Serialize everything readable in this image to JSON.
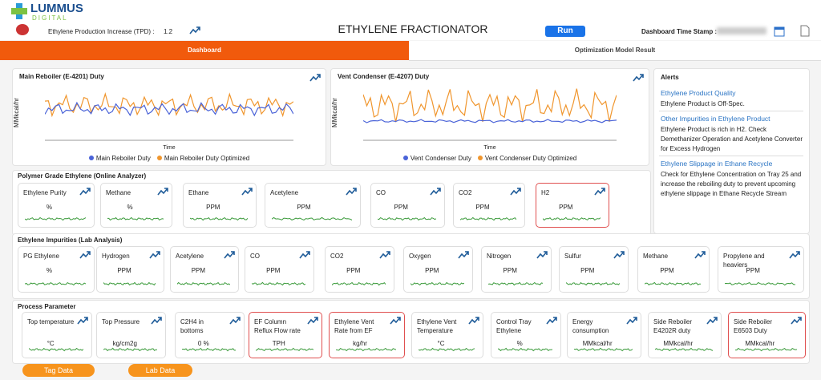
{
  "header": {
    "brand": "LUMMUS",
    "brand_sub": "DIGITAL",
    "production_label": "Ethylene Production Increase (TPD) :",
    "production_value": "1.2",
    "title": "ETHYLENE FRACTIONATOR",
    "run": "Run",
    "timestamp_label": "Dashboard Time Stamp :"
  },
  "tabs": [
    "Dashboard",
    "Optimization Model Result"
  ],
  "charts": [
    {
      "title": "Main Reboiler (E-4201) Duty",
      "y_label": "MMkcal/hr",
      "x_label": "Time",
      "legend": [
        {
          "name": "Main Reboiler Duty",
          "color": "#4a63d8"
        },
        {
          "name": "Main Reboiler Duty Optimized",
          "color": "#f0962e"
        }
      ]
    },
    {
      "title": "Vent Condenser (E-4207) Duty",
      "y_label": "MMkcal/hr",
      "x_label": "Time",
      "legend": [
        {
          "name": "Vent Condenser Duty",
          "color": "#4a63d8"
        },
        {
          "name": "Vent Condenser Duty Optimized",
          "color": "#f0962e"
        }
      ]
    }
  ],
  "alerts": {
    "title": "Alerts",
    "items": [
      {
        "heading": "Ethylene Product Quality",
        "text": "Ethylene Product is Off-Spec."
      },
      {
        "heading": "Other Impurities in Ethylene Product",
        "text": "Ethylene Product is rich in H2. Check Demethanizer Operation and Acetylene Converter for Excess Hydrogen"
      },
      {
        "heading": "Ethylene Slippage in Ethane Recycle",
        "text": "Check for Ethylene Concentration on Tray 25 and increase the reboiling duty to prevent upcoming ethylene slippage in Ethane Recycle Stream"
      }
    ]
  },
  "sections": [
    {
      "title": "Polymer Grade Ethylene (Online Analyzer)",
      "cards": [
        {
          "name": "Ethylene Purity",
          "unit": "%",
          "highlight": false
        },
        {
          "name": "Methane",
          "unit": "%",
          "highlight": false
        },
        {
          "name": "Ethane",
          "unit": "PPM",
          "highlight": false
        },
        {
          "name": "Acetylene",
          "unit": "PPM",
          "highlight": false
        },
        {
          "name": "CO",
          "unit": "PPM",
          "highlight": false
        },
        {
          "name": "CO2",
          "unit": "PPM",
          "highlight": false
        },
        {
          "name": "H2",
          "unit": "PPM",
          "highlight": true
        }
      ]
    },
    {
      "title": "Ethylene Impurities (Lab Analysis)",
      "cards": [
        {
          "name": "PG Ethylene",
          "unit": "%",
          "highlight": false
        },
        {
          "name": "Hydrogen",
          "unit": "PPM",
          "highlight": false
        },
        {
          "name": "Acetylene",
          "unit": "PPM",
          "highlight": false
        },
        {
          "name": "CO",
          "unit": "PPM",
          "highlight": false
        },
        {
          "name": "CO2",
          "unit": "PPM",
          "highlight": false
        },
        {
          "name": "Oxygen",
          "unit": "PPM",
          "highlight": false
        },
        {
          "name": "Nitrogen",
          "unit": "PPM",
          "highlight": false
        },
        {
          "name": "Sulfur",
          "unit": "PPM",
          "highlight": false
        },
        {
          "name": "Methane",
          "unit": "PPM",
          "highlight": false
        },
        {
          "name": "Propylene and heaviers",
          "unit": "PPM",
          "highlight": false
        }
      ]
    },
    {
      "title": "Process Parameter",
      "cards": [
        {
          "name": "Top temperature",
          "unit": "°C",
          "highlight": false
        },
        {
          "name": "Top Pressure",
          "unit": "kg/cm2g",
          "highlight": false
        },
        {
          "name": "C2H4 in bottoms",
          "unit": "0 %",
          "highlight": false
        },
        {
          "name": "EF Column Reflux Flow rate",
          "unit": "TPH",
          "highlight": true
        },
        {
          "name": "Ethylene Vent Rate from EF",
          "unit": "kg/hr",
          "highlight": true
        },
        {
          "name": "Ethylene Vent Temperature",
          "unit": "°C",
          "highlight": false
        },
        {
          "name": "Control Tray Ethylene",
          "unit": "%",
          "highlight": false
        },
        {
          "name": "Energy consumption",
          "unit": "MMkcal/hr",
          "highlight": false
        },
        {
          "name": "Side Reboiler E4202R duty",
          "unit": "MMkcal/hr",
          "highlight": false
        },
        {
          "name": "Side Reboiler E6503 Duty",
          "unit": "MMkcal/hr",
          "highlight": true
        }
      ]
    }
  ],
  "buttons": [
    "Tag Data",
    "Lab Data"
  ]
}
